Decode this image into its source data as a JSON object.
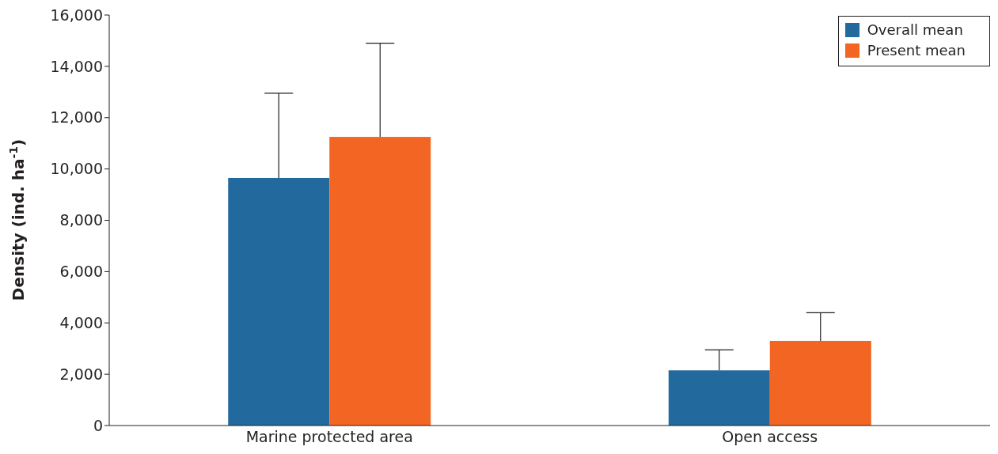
{
  "chart_data": {
    "type": "bar",
    "ylabel": "Density (ind. ha$^{-1}$)",
    "categories": [
      "Marine protected area",
      "Open access"
    ],
    "series": [
      {
        "name": "Overall mean",
        "color": "#22699d",
        "values": [
          9650,
          2150
        ],
        "errors": [
          [
            9650,
            12950
          ],
          [
            2150,
            2950
          ]
        ]
      },
      {
        "name": "Present mean",
        "color": "#f26522",
        "values": [
          11250,
          3300
        ],
        "errors": [
          [
            11250,
            14900
          ],
          [
            3300,
            4400
          ]
        ]
      }
    ],
    "ylim": [
      0,
      16000
    ],
    "yticks": [
      {
        "value": 0,
        "label": "0"
      },
      {
        "value": 2000,
        "label": "2,000"
      },
      {
        "value": 4000,
        "label": "4,000"
      },
      {
        "value": 6000,
        "label": "6,000"
      },
      {
        "value": 8000,
        "label": "8,000"
      },
      {
        "value": 10000,
        "label": "10,000"
      },
      {
        "value": 12000,
        "label": "12,000"
      },
      {
        "value": 14000,
        "label": "14,000"
      },
      {
        "value": 16000,
        "label": "16,000"
      }
    ],
    "grid": false,
    "legend": "top right"
  }
}
